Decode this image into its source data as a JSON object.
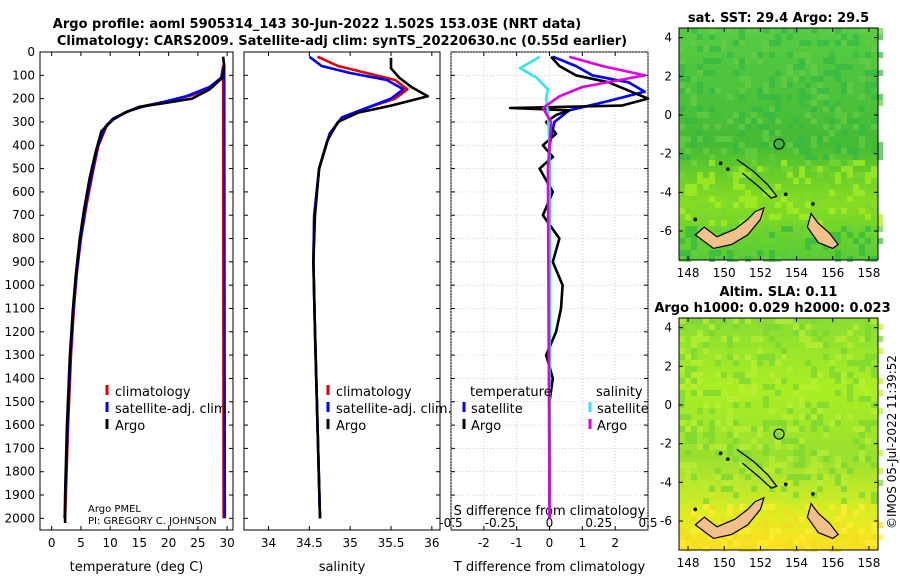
{
  "titles": {
    "line1": "Argo profile: aoml 5905314_143 30-Jun-2022 1.502S 153.03E (NRT data)",
    "line2": "Climatology: CARS2009. Satellite-adj clim: synTS_20220630.nc (0.55d earlier)"
  },
  "credit": {
    "line1": "Argo PMEL",
    "line2": "PI: GREGORY C. JOHNSON"
  },
  "watermark": "©IMOS 05-Jul-2022 11:39:52",
  "colors": {
    "argo": "#000000",
    "clim": "#e00000",
    "sat": "#0000ff",
    "sat_s": "#33e5ee",
    "argo_s": "#e000e0"
  },
  "chart_data": [
    {
      "type": "line",
      "id": "temperature",
      "xlabel": "temperature (deg C)",
      "ylabel": "",
      "xlim": [
        -2,
        31
      ],
      "ylim": [
        2050,
        0
      ],
      "xticks": [
        0,
        5,
        10,
        15,
        20,
        25,
        30
      ],
      "yticks": [
        0,
        100,
        200,
        300,
        400,
        500,
        600,
        700,
        800,
        900,
        1000,
        1100,
        1200,
        1300,
        1400,
        1500,
        1600,
        1700,
        1800,
        1900,
        2000
      ],
      "legend": [
        "climatology",
        "satellite-adj. clim.",
        "Argo"
      ],
      "series": [
        {
          "name": "climatology",
          "color": "#e00000",
          "points": [
            [
              29.4,
              2000
            ],
            [
              29.3,
              60
            ],
            [
              29.0,
              110
            ],
            [
              27.5,
              150
            ],
            [
              24,
              185
            ],
            [
              20,
              210
            ],
            [
              16,
              230
            ],
            [
              13.5,
              250
            ],
            [
              11,
              280
            ],
            [
              9.5,
              310
            ],
            [
              8,
              400
            ],
            [
              7,
              520
            ],
            [
              6,
              650
            ],
            [
              5,
              800
            ],
            [
              4.3,
              950
            ],
            [
              3.8,
              1100
            ],
            [
              3.3,
              1300
            ],
            [
              2.8,
              1600
            ],
            [
              2.3,
              2000
            ]
          ]
        },
        {
          "name": "satellite-adj. clim.",
          "color": "#0000ff",
          "points": [
            [
              29.6,
              2000
            ],
            [
              29.5,
              60
            ],
            [
              29.0,
              110
            ],
            [
              27,
              150
            ],
            [
              23,
              190
            ],
            [
              19,
              215
            ],
            [
              15.5,
              235
            ],
            [
              13,
              255
            ],
            [
              10.5,
              285
            ],
            [
              9.2,
              320
            ],
            [
              7.8,
              410
            ],
            [
              6.8,
              530
            ],
            [
              5.8,
              660
            ],
            [
              4.9,
              810
            ],
            [
              4.2,
              960
            ],
            [
              3.7,
              1110
            ],
            [
              3.2,
              1310
            ],
            [
              2.7,
              1610
            ],
            [
              2.2,
              2000
            ]
          ]
        },
        {
          "name": "Argo",
          "color": "#000000",
          "points": [
            [
              29.3,
              20
            ],
            [
              29.5,
              60
            ],
            [
              29.2,
              110
            ],
            [
              27,
              160
            ],
            [
              24,
              200
            ],
            [
              19,
              220
            ],
            [
              15,
              235
            ],
            [
              12.5,
              260
            ],
            [
              10.5,
              290
            ],
            [
              8.5,
              340
            ],
            [
              7.5,
              430
            ],
            [
              6.5,
              540
            ],
            [
              5.5,
              680
            ],
            [
              4.8,
              800
            ],
            [
              4.1,
              960
            ],
            [
              3.6,
              1110
            ],
            [
              3.1,
              1310
            ],
            [
              2.6,
              1610
            ],
            [
              2.3,
              1900
            ],
            [
              2.3,
              2020
            ]
          ]
        }
      ]
    },
    {
      "type": "line",
      "id": "salinity",
      "xlabel": "salinity",
      "ylabel": "",
      "xlim": [
        33.7,
        36.1
      ],
      "ylim": [
        2050,
        0
      ],
      "xticks": [
        34,
        34.5,
        35,
        35.5,
        36
      ],
      "legend": [
        "climatology",
        "satellite-adj. clim.",
        "Argo"
      ],
      "series": [
        {
          "name": "climatology",
          "color": "#e00000",
          "points": [
            [
              34.6,
              20
            ],
            [
              34.85,
              60
            ],
            [
              35.2,
              90
            ],
            [
              35.55,
              120
            ],
            [
              35.7,
              160
            ],
            [
              35.55,
              200
            ],
            [
              35.2,
              240
            ],
            [
              34.9,
              280
            ],
            [
              34.75,
              350
            ],
            [
              34.62,
              500
            ],
            [
              34.56,
              700
            ],
            [
              34.55,
              900
            ],
            [
              34.57,
              1200
            ],
            [
              34.6,
              1600
            ],
            [
              34.63,
              2000
            ]
          ]
        },
        {
          "name": "satellite-adj. clim.",
          "color": "#0000ff",
          "points": [
            [
              34.5,
              20
            ],
            [
              34.65,
              60
            ],
            [
              35.0,
              90
            ],
            [
              35.45,
              120
            ],
            [
              35.65,
              160
            ],
            [
              35.5,
              200
            ],
            [
              35.2,
              240
            ],
            [
              34.9,
              280
            ],
            [
              34.75,
              350
            ],
            [
              34.62,
              500
            ],
            [
              34.56,
              700
            ],
            [
              34.55,
              900
            ],
            [
              34.57,
              1200
            ],
            [
              34.6,
              1600
            ],
            [
              34.63,
              2000
            ]
          ]
        },
        {
          "name": "Argo",
          "color": "#000000",
          "points": [
            [
              35.5,
              25
            ],
            [
              35.5,
              70
            ],
            [
              35.6,
              110
            ],
            [
              35.75,
              150
            ],
            [
              35.95,
              190
            ],
            [
              35.5,
              230
            ],
            [
              35.1,
              260
            ],
            [
              34.85,
              300
            ],
            [
              34.72,
              380
            ],
            [
              34.62,
              500
            ],
            [
              34.57,
              700
            ],
            [
              34.55,
              900
            ],
            [
              34.57,
              1200
            ],
            [
              34.6,
              1600
            ],
            [
              34.63,
              2000
            ]
          ]
        }
      ]
    },
    {
      "type": "line",
      "id": "difference",
      "xlabel": "T difference from climatology",
      "xlabel_top": "S difference from climatology",
      "xlim": [
        -3,
        3
      ],
      "ylim": [
        2050,
        0
      ],
      "xticks": [
        -2,
        -1,
        0,
        1,
        2
      ],
      "xticks_top": [
        -0.5,
        -0.25,
        0,
        0.25,
        0.5
      ],
      "legend_left_title": "temperature",
      "legend_right_title": "salinity",
      "legend_left": [
        "satellite",
        "Argo"
      ],
      "legend_right": [
        "satellite",
        "Argo"
      ],
      "series": [
        {
          "name": "T satellite",
          "color": "#0000ff",
          "points": [
            [
              0.1,
              20
            ],
            [
              0.8,
              60
            ],
            [
              1.3,
              100
            ],
            [
              2.4,
              130
            ],
            [
              2.9,
              170
            ],
            [
              1.8,
              210
            ],
            [
              0.6,
              250
            ],
            [
              0.15,
              300
            ],
            [
              0,
              400
            ],
            [
              0,
              2000
            ]
          ]
        },
        {
          "name": "T Argo",
          "color": "#000000",
          "points": [
            [
              0.05,
              20
            ],
            [
              0.3,
              60
            ],
            [
              0.8,
              100
            ],
            [
              1.8,
              130
            ],
            [
              3.0,
              200
            ],
            [
              2.2,
              230
            ],
            [
              -1.2,
              240
            ],
            [
              0.6,
              250
            ],
            [
              0.2,
              270
            ],
            [
              -0.1,
              300
            ],
            [
              0.2,
              350
            ],
            [
              -0.2,
              400
            ],
            [
              0.1,
              450
            ],
            [
              -0.3,
              500
            ],
            [
              0.1,
              600
            ],
            [
              -0.2,
              700
            ],
            [
              0.3,
              800
            ],
            [
              0.1,
              900
            ],
            [
              0.4,
              1000
            ],
            [
              0.35,
              1100
            ],
            [
              0.2,
              1200
            ],
            [
              -0.1,
              1300
            ],
            [
              0.1,
              1400
            ],
            [
              0,
              1500
            ],
            [
              0,
              2000
            ]
          ]
        },
        {
          "name": "S satellite",
          "color": "#33e5ee",
          "points": [
            [
              -0.3,
              20
            ],
            [
              -0.9,
              70
            ],
            [
              -0.4,
              110
            ],
            [
              -0.05,
              160
            ],
            [
              -0.1,
              200
            ],
            [
              -0.05,
              260
            ],
            [
              0,
              400
            ],
            [
              0,
              2000
            ]
          ]
        },
        {
          "name": "S Argo",
          "color": "#e000e0",
          "points": [
            [
              0.6,
              20
            ],
            [
              1.6,
              60
            ],
            [
              2.9,
              100
            ],
            [
              1.0,
              150
            ],
            [
              0.3,
              190
            ],
            [
              -0.2,
              240
            ],
            [
              0.05,
              300
            ],
            [
              -0.05,
              500
            ],
            [
              0,
              2000
            ]
          ]
        }
      ]
    },
    {
      "type": "heatmap",
      "id": "sst-map",
      "title": "sat. SST: 29.4 Argo: 29.5",
      "xlim": [
        147.5,
        158.5
      ],
      "ylim": [
        -7.5,
        4.5
      ],
      "xticks": [
        148,
        150,
        152,
        154,
        156,
        158
      ],
      "yticks": [
        -6,
        -4,
        -2,
        0,
        2,
        4
      ],
      "argo_position": [
        153.03,
        -1.502
      ]
    },
    {
      "type": "heatmap",
      "id": "sla-map",
      "title": "Altim. SLA: 0.11",
      "subtitle": "Argo h1000: 0.029 h2000: 0.023",
      "xlim": [
        147.5,
        158.5
      ],
      "ylim": [
        -7.5,
        4.5
      ],
      "xticks": [
        148,
        150,
        152,
        154,
        156,
        158
      ],
      "yticks": [
        -6,
        -4,
        -2,
        0,
        2,
        4
      ],
      "argo_position": [
        153.03,
        -1.502
      ]
    }
  ]
}
